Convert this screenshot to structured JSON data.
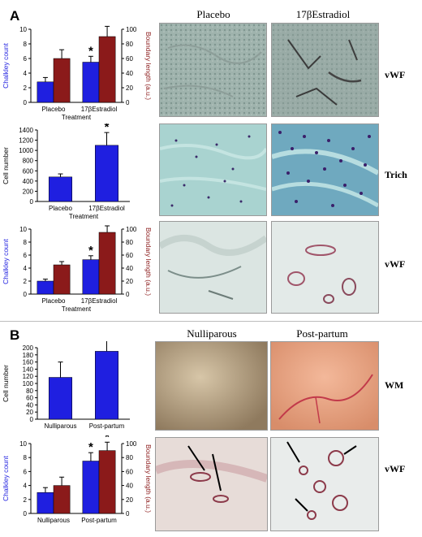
{
  "panels": [
    {
      "letter": "A"
    },
    {
      "letter": "B"
    }
  ],
  "column_headers_A": [
    "Placebo",
    "17βEstradiol"
  ],
  "column_headers_B": [
    "Nulliparous",
    "Post-partum"
  ],
  "row_labels": [
    "vWF",
    "Trich",
    "vWF",
    "WM",
    "vWF"
  ],
  "colors": {
    "blue": "#1f1fe0",
    "red": "#8b1a1a",
    "left_axis_text": "#1f1fe0",
    "right_axis_text": "#8b1a1a"
  },
  "chart_data": [
    {
      "type": "bar",
      "categories": [
        "Placebo",
        "17βEstradiol"
      ],
      "xlabel": "Treatment",
      "ylabel": "Chalkley count",
      "ylabel_right": "Boundary length (a.u.)",
      "ylim": [
        0,
        10
      ],
      "ylim_right": [
        0,
        100
      ],
      "yticks": [
        "0",
        "2",
        "4",
        "6",
        "8",
        "10"
      ],
      "yticks_right": [
        "0",
        "20",
        "40",
        "60",
        "80",
        "100"
      ],
      "series": [
        {
          "values": [
            2.8,
            5.5
          ],
          "errors": [
            0.6,
            0.8
          ],
          "axis": "left"
        },
        {
          "values": [
            60,
            90
          ],
          "errors": [
            12,
            14
          ],
          "axis": "right"
        }
      ],
      "significance": [
        "",
        "*"
      ],
      "significance_right": [
        "",
        "*"
      ]
    },
    {
      "type": "bar",
      "categories": [
        "Placebo",
        "17βEstradiol"
      ],
      "xlabel": "Treatment",
      "ylabel": "Cell number",
      "ylim": [
        0,
        1400
      ],
      "yticks": [
        "0",
        "200",
        "400",
        "600",
        "800",
        "1000",
        "1200",
        "1400"
      ],
      "series": [
        {
          "values": [
            480,
            1100
          ],
          "errors": [
            60,
            250
          ],
          "axis": "left"
        }
      ],
      "significance": [
        "",
        "*"
      ]
    },
    {
      "type": "bar",
      "categories": [
        "Placebo",
        "17βEstradiol"
      ],
      "xlabel": "Treatment",
      "ylabel": "Chalkley count",
      "ylabel_right": "Boundary length (a.u.)",
      "ylim": [
        0,
        10
      ],
      "ylim_right": [
        0,
        100
      ],
      "yticks": [
        "0",
        "2",
        "4",
        "6",
        "8",
        "10"
      ],
      "yticks_right": [
        "0",
        "20",
        "40",
        "60",
        "80",
        "100"
      ],
      "series": [
        {
          "values": [
            2.0,
            5.3
          ],
          "errors": [
            0.3,
            0.6
          ],
          "axis": "left"
        },
        {
          "values": [
            45,
            95
          ],
          "errors": [
            5,
            10
          ],
          "axis": "right"
        }
      ],
      "significance": [
        "",
        "*"
      ],
      "significance_right": [
        "",
        "*"
      ]
    },
    {
      "type": "bar",
      "categories": [
        "Nulliparous",
        "Post-partum"
      ],
      "xlabel": "",
      "ylabel": "Cell number",
      "ylim": [
        0,
        200
      ],
      "yticks": [
        "0",
        "20",
        "40",
        "60",
        "80",
        "100",
        "120",
        "140",
        "160",
        "180",
        "200"
      ],
      "series": [
        {
          "values": [
            117,
            190
          ],
          "errors": [
            43,
            30
          ],
          "axis": "left"
        }
      ],
      "significance": [
        "",
        "*"
      ]
    },
    {
      "type": "bar",
      "categories": [
        "Nulliparous",
        "Post-partum"
      ],
      "xlabel": "",
      "ylabel": "Chalkley count",
      "ylabel_right": "Boundary length (a.u.)",
      "ylim": [
        0,
        10
      ],
      "ylim_right": [
        0,
        100
      ],
      "yticks": [
        "0",
        "2",
        "4",
        "6",
        "8",
        "10"
      ],
      "yticks_right": [
        "0",
        "20",
        "40",
        "60",
        "80",
        "100"
      ],
      "series": [
        {
          "values": [
            3.0,
            7.5
          ],
          "errors": [
            0.7,
            1.2
          ],
          "axis": "left"
        },
        {
          "values": [
            40,
            90
          ],
          "errors": [
            12,
            12
          ],
          "axis": "right"
        }
      ],
      "significance": [
        "",
        "*"
      ],
      "significance_right": [
        "",
        "*"
      ]
    }
  ]
}
